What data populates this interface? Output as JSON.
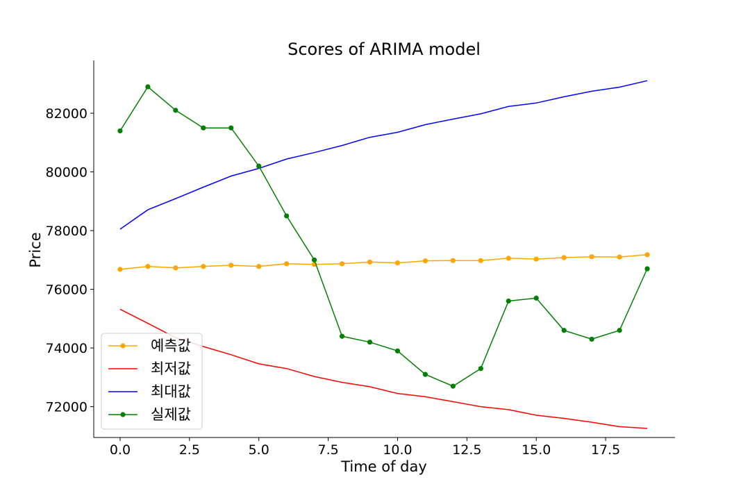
{
  "chart_data": {
    "type": "line",
    "title": "Scores of ARIMA model",
    "xlabel": "Time of day",
    "ylabel": "Price",
    "xlim": [
      -0.95,
      20.0
    ],
    "ylim": [
      70950,
      83800
    ],
    "xticks": [
      0.0,
      2.5,
      5.0,
      7.5,
      10.0,
      12.5,
      15.0,
      17.5
    ],
    "xtick_labels": [
      "0.0",
      "2.5",
      "5.0",
      "7.5",
      "10.0",
      "12.5",
      "15.0",
      "17.5"
    ],
    "yticks": [
      72000,
      74000,
      76000,
      78000,
      80000,
      82000
    ],
    "ytick_labels": [
      "72000",
      "74000",
      "76000",
      "78000",
      "80000",
      "82000"
    ],
    "grid": false,
    "legend_position": "lower-left",
    "x": [
      0,
      1,
      2,
      3,
      4,
      5,
      6,
      7,
      8,
      9,
      10,
      11,
      12,
      13,
      14,
      15,
      16,
      17,
      18,
      19
    ],
    "series": [
      {
        "name": "예측값",
        "color": "#ffa500",
        "marker": true,
        "values": [
          76680,
          76780,
          76730,
          76780,
          76820,
          76780,
          76870,
          76850,
          76870,
          76930,
          76900,
          76970,
          76980,
          76980,
          77060,
          77030,
          77080,
          77110,
          77100,
          77180
        ]
      },
      {
        "name": "최저값",
        "color": "#ff0000",
        "marker": false,
        "values": [
          75320,
          74840,
          74350,
          74050,
          73770,
          73460,
          73300,
          73030,
          72830,
          72680,
          72450,
          72340,
          72170,
          72000,
          71900,
          71710,
          71600,
          71470,
          71320,
          71260
        ]
      },
      {
        "name": "최대값",
        "color": "#0000ff",
        "marker": false,
        "values": [
          78050,
          78710,
          79090,
          79480,
          79860,
          80120,
          80440,
          80660,
          80900,
          81180,
          81350,
          81610,
          81800,
          81980,
          82230,
          82350,
          82560,
          82750,
          82890,
          83110
        ]
      },
      {
        "name": "실제값",
        "color": "#008000",
        "marker": true,
        "values": [
          81400,
          82900,
          82100,
          81500,
          81500,
          80200,
          78500,
          77000,
          74400,
          74200,
          73900,
          73100,
          72700,
          73300,
          75600,
          75700,
          74600,
          74300,
          74600,
          76700
        ]
      }
    ]
  }
}
